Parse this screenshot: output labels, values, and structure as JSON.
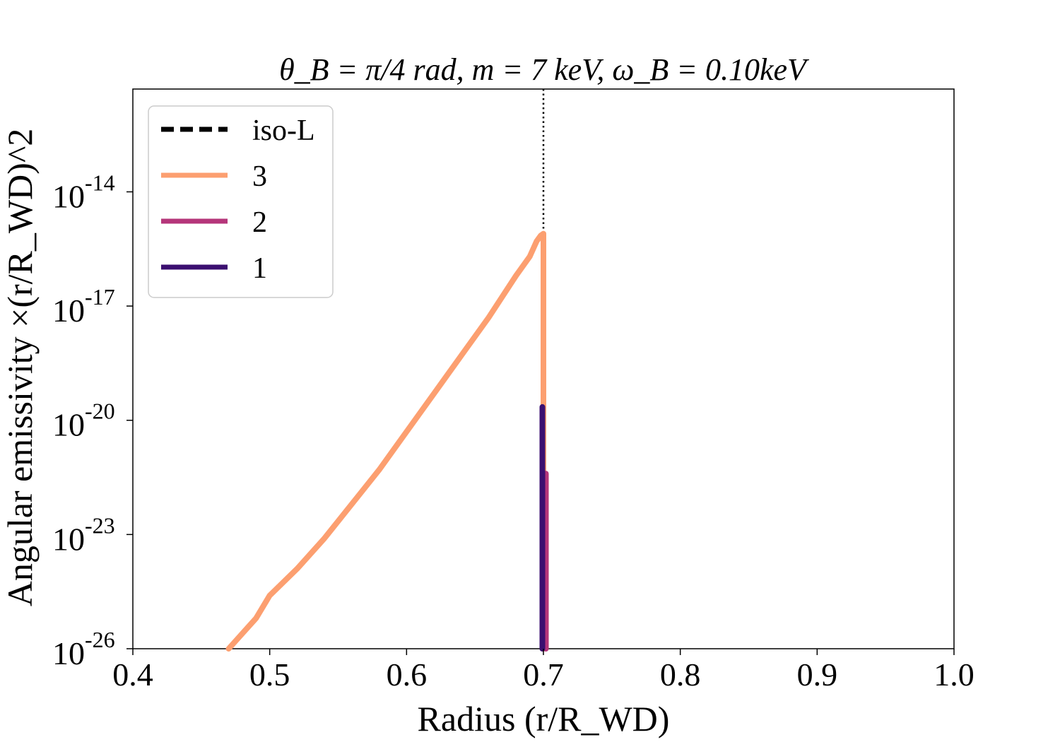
{
  "chart_data": {
    "type": "line",
    "title": "θ_B = π/4 rad, m = 7 keV, ω_B = 0.10keV",
    "xlabel": "Radius (r/R_WD)",
    "ylabel": "Angular emissivity ×(r/R_WD)^2",
    "xlim": [
      0.4,
      1.0
    ],
    "ylim_log10": [
      -26,
      -11.3
    ],
    "y_scale": "log",
    "x_ticks": [
      "0.4",
      "0.5",
      "0.6",
      "0.7",
      "0.8",
      "0.9",
      "1.0"
    ],
    "y_ticks": [
      {
        "exp": -26,
        "base": "10",
        "sup": "-26"
      },
      {
        "exp": -23,
        "base": "10",
        "sup": "-23"
      },
      {
        "exp": -20,
        "base": "10",
        "sup": "-20"
      },
      {
        "exp": -17,
        "base": "10",
        "sup": "-17"
      },
      {
        "exp": -14,
        "base": "10",
        "sup": "-14"
      }
    ],
    "vline_x": 0.7,
    "legend_position": "upper-left",
    "series": [
      {
        "name": "iso-L",
        "color": "#000000",
        "style": "dashed",
        "x": [],
        "log10_y": []
      },
      {
        "name": "3",
        "color": "#fc9f70",
        "style": "solid",
        "x": [
          0.47,
          0.49,
          0.5,
          0.52,
          0.54,
          0.56,
          0.58,
          0.6,
          0.62,
          0.64,
          0.66,
          0.68,
          0.69,
          0.695,
          0.698,
          0.7,
          0.7
        ],
        "log10_y": [
          -26.0,
          -25.2,
          -24.6,
          -23.9,
          -23.1,
          -22.2,
          -21.3,
          -20.3,
          -19.3,
          -18.3,
          -17.3,
          -16.2,
          -15.7,
          -15.3,
          -15.15,
          -15.1,
          -26.0
        ]
      },
      {
        "name": "2",
        "color": "#b5367a",
        "style": "solid",
        "x": [
          0.7018,
          0.7018
        ],
        "log10_y": [
          -26.0,
          -21.4
        ]
      },
      {
        "name": "1",
        "color": "#3b0f70",
        "style": "solid",
        "x": [
          0.6992,
          0.6992
        ],
        "log10_y": [
          -26.0,
          -19.65
        ]
      }
    ]
  },
  "legend": {
    "items": [
      "iso-L",
      "3",
      "2",
      "1"
    ]
  }
}
